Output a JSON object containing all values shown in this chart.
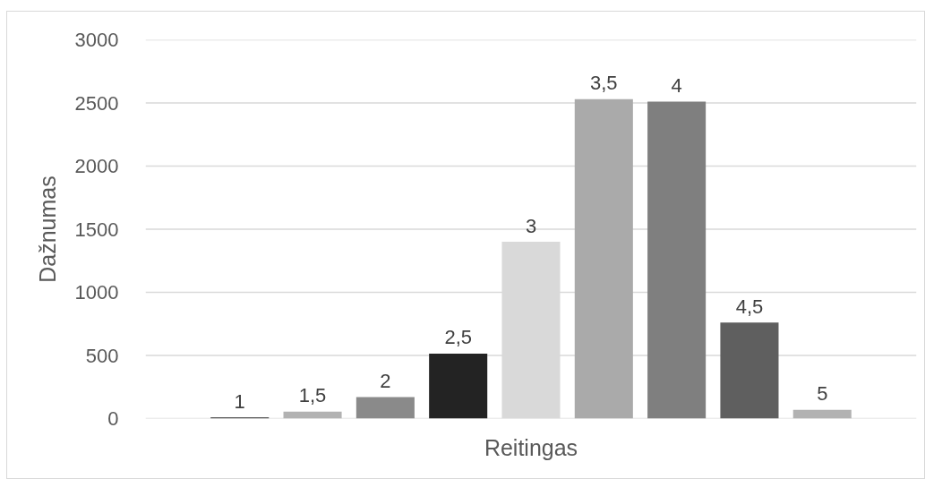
{
  "chart_data": {
    "type": "bar",
    "xlabel": "Reitingas",
    "ylabel": "Dažnumas",
    "categories": [
      null
    ],
    "series": [
      {
        "name": "1",
        "color": "#595959",
        "values": [
          10
        ]
      },
      {
        "name": "1,5",
        "color": "#b2b2b2",
        "values": [
          55
        ]
      },
      {
        "name": "2",
        "color": "#8a8a8a",
        "values": [
          170
        ]
      },
      {
        "name": "2,5",
        "color": "#232323",
        "values": [
          515
        ]
      },
      {
        "name": "3",
        "color": "#d9d9d9",
        "values": [
          1400
        ]
      },
      {
        "name": "3,5",
        "color": "#aaaaaa",
        "values": [
          2530
        ]
      },
      {
        "name": "4",
        "color": "#7f7f7f",
        "values": [
          2510
        ]
      },
      {
        "name": "4,5",
        "color": "#5f5f5f",
        "values": [
          760
        ]
      },
      {
        "name": "5",
        "color": "#b2b2b2",
        "values": [
          70
        ]
      }
    ],
    "ylim": [
      0,
      3000
    ],
    "yticks": [
      0,
      500,
      1000,
      1500,
      2000,
      2500,
      3000
    ],
    "grid": "y"
  }
}
